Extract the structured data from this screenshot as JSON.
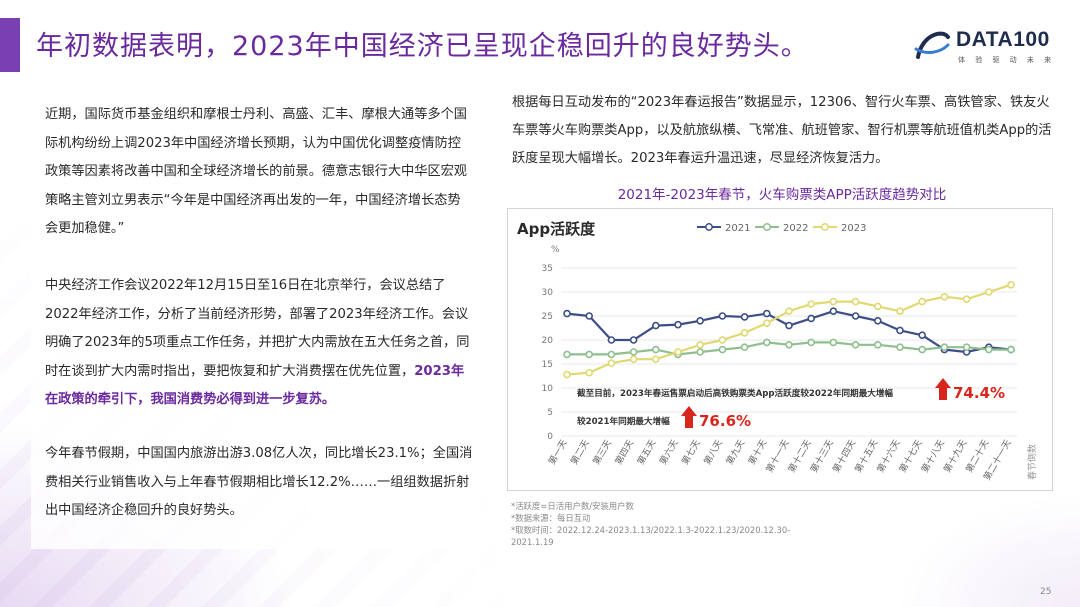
{
  "header": {
    "title": "年初数据表明，2023年中国经济已呈现企稳回升的良好势头。",
    "logo_text": "DATA100",
    "logo_sub": "体 验 驱 动 未 来"
  },
  "left": {
    "p1": "近期，国际货币基金组织和摩根士丹利、高盛、汇丰、摩根大通等多个国际机构纷纷上调2023年中国经济增长预期，认为中国优化调整疫情防控政策等因素将改善中国和全球经济增长的前景。德意志银行大中华区宏观策略主管刘立男表示“今年是中国经济再出发的一年，中国经济增长态势会更加稳健。”",
    "p2_text": "中央经济工作会议2022年12月15日至16日在北京举行，会议总结了2022年经济工作，分析了当前经济形势，部署了2023年经济工作。会议明确了2023年的5项重点工作任务，并把扩大内需放在五大任务之首，同时在谈到扩大内需时指出，要把恢复和扩大消费摆在优先位置，",
    "p2_highlight": "2023年在政策的牵引下，我国消费势必得到进一步复苏。",
    "p3": "今年春节假期，中国国内旅游出游3.08亿人次，同比增长23.1%；全国消费相关行业销售收入与上年春节假期相比增长12.2%……一组组数据折射出中国经济企稳回升的良好势头。"
  },
  "right": {
    "text": "根据每日互动发布的“2023年春运报告”数据显示，12306、智行火车票、高铁管家、铁友火车票等火车购票类App，以及航旅纵横、飞常准、航班管家、智行机票等航班值机类App的活跃度呈现大幅增长。2023年春运升温迅速，尽显经济恢复活力。",
    "chart_heading": "2021年-2023年春节，火车购票类APP活跃度趋势对比",
    "footnote": "*活跃度=日活用户数/安装用户数\n*数据来源：每日互动\n*取数时间：2022.12.24-2023.1.13/2022.1.3-2022.1.23/2020.12.30-2021.1.19",
    "page_number": "25"
  },
  "chart_data": {
    "type": "line",
    "title": "App活跃度",
    "ylabel": "%",
    "xlabel": "春节倒数",
    "ylim": [
      0,
      35
    ],
    "yticks": [
      0,
      5,
      10,
      15,
      20,
      25,
      30,
      35
    ],
    "categories": [
      "第一天",
      "第二天",
      "第三天",
      "第四天",
      "第五天",
      "第六天",
      "第七天",
      "第八天",
      "第九天",
      "第十天",
      "第十一天",
      "第十二天",
      "第十三天",
      "第十四天",
      "第十五天",
      "第十六天",
      "第十七天",
      "第十八天",
      "第十九天",
      "第二十天",
      "第二十一天"
    ],
    "series": [
      {
        "name": "2021",
        "color": "#3d4e86",
        "values": [
          25.5,
          25,
          20,
          20,
          23,
          23.2,
          24,
          25,
          24.8,
          25.5,
          23,
          24.5,
          26,
          25,
          24,
          22,
          21,
          18,
          17.5,
          18.5,
          18
        ]
      },
      {
        "name": "2022",
        "color": "#8fbf8f",
        "values": [
          17,
          17,
          17,
          17.5,
          18,
          17,
          17.5,
          18,
          18.5,
          19.5,
          19,
          19.5,
          19.5,
          19,
          19,
          18.5,
          18,
          18.5,
          18.5,
          18,
          18
        ]
      },
      {
        "name": "2023",
        "color": "#e0d870",
        "values": [
          12.8,
          13.2,
          15.2,
          16,
          16,
          17.5,
          19,
          20,
          21.5,
          23.5,
          26,
          27.5,
          28,
          28,
          27,
          26,
          28,
          29,
          28.5,
          30,
          31.5
        ]
      }
    ],
    "annotations": [
      {
        "text": "截至目前，2023年春运售票启动后高铁购票类App活跃度较2022年同期最大增幅",
        "value": "74.4%"
      },
      {
        "text": "较2021年同期最大增幅",
        "value": "76.6%"
      }
    ],
    "grid": true,
    "legend_position": "top"
  }
}
